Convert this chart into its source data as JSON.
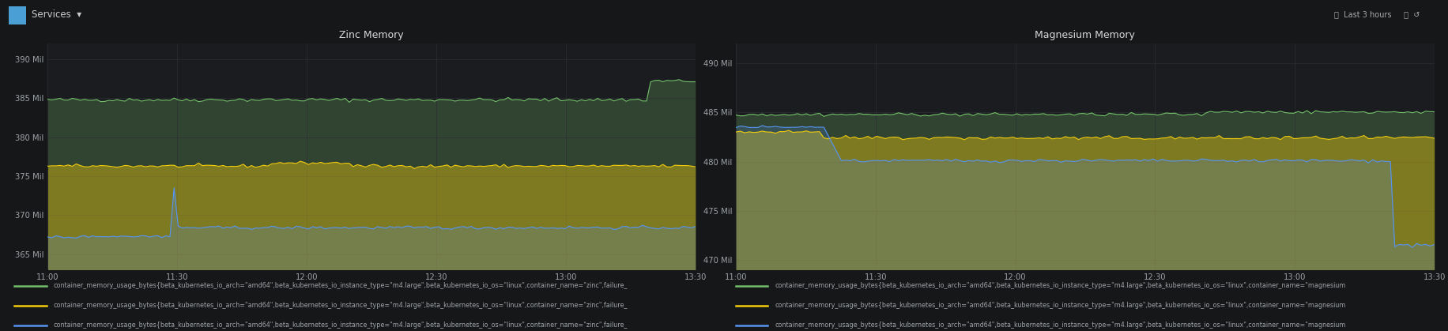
{
  "bg_color": "#161719",
  "panel_bg": "#1a1c1f",
  "grid_color": "#2c2f33",
  "text_color": "#9fa3a8",
  "title_color": "#d8d9da",
  "topbar_color": "#101214",
  "panel1_title": "Zinc Memory",
  "panel1_ylim": [
    363000000,
    392000000
  ],
  "panel1_yticks": [
    365000000,
    370000000,
    375000000,
    380000000,
    385000000,
    390000000
  ],
  "panel1_ytick_labels": [
    "365 Mil",
    "370 Mil",
    "375 Mil",
    "380 Mil",
    "385 Mil",
    "390 Mil"
  ],
  "panel1_xtick_labels": [
    "11:00",
    "11:30",
    "12:00",
    "12:30",
    "13:00",
    "13:30"
  ],
  "panel2_title": "Magnesium Memory",
  "panel2_ylim": [
    469000000,
    492000000
  ],
  "panel2_yticks": [
    470000000,
    475000000,
    480000000,
    485000000,
    490000000
  ],
  "panel2_ytick_labels": [
    "470 Mil",
    "475 Mil",
    "480 Mil",
    "485 Mil",
    "490 Mil"
  ],
  "panel2_xtick_labels": [
    "11:00",
    "11:30",
    "12:00",
    "12:30",
    "13:00",
    "13:30"
  ],
  "line_green": "#73bf69",
  "line_yellow": "#f2cc0c",
  "line_cyan": "#5794f2",
  "fill_green_alpha": 0.18,
  "fill_yellow_alpha": 0.35,
  "fill_cyan_alpha": 0.12,
  "zinc_labels": [
    "container_memory_usage_bytes{beta_kubernetes_io_arch=\"amd64\",beta_kubernetes_io_instance_type=\"m4.large\",beta_kubernetes_io_os=\"linux\",container_name=\"zinc\",failure_",
    "container_memory_usage_bytes{beta_kubernetes_io_arch=\"amd64\",beta_kubernetes_io_instance_type=\"m4.large\",beta_kubernetes_io_os=\"linux\",container_name=\"zinc\",failure_",
    "container_memory_usage_bytes{beta_kubernetes_io_arch=\"amd64\",beta_kubernetes_io_instance_type=\"m4.large\",beta_kubernetes_io_os=\"linux\",container_name=\"zinc\",failure_"
  ],
  "mag_labels": [
    "container_memory_usage_bytes{beta_kubernetes_io_arch=\"amd64\",beta_kubernetes_io_instance_type=\"m4.large\",beta_kubernetes_io_os=\"linux\",container_name=\"magnesium",
    "container_memory_usage_bytes{beta_kubernetes_io_arch=\"amd64\",beta_kubernetes_io_instance_type=\"m4.large\",beta_kubernetes_io_os=\"linux\",container_name=\"magnesium",
    "container_memory_usage_bytes{beta_kubernetes_io_arch=\"amd64\",beta_kubernetes_io_instance_type=\"m4.large\",beta_kubernetes_io_os=\"linux\",container_name=\"magnesium"
  ]
}
